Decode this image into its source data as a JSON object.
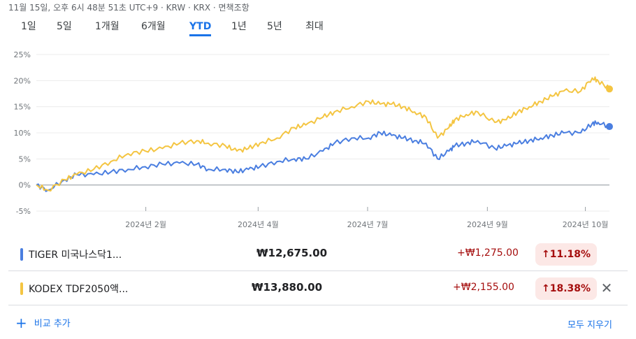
{
  "header": {
    "meta": "11월 15일, 오후 6시 48분 51초 UTC+9 · KRW · KRX · 면책조항"
  },
  "tabs": [
    {
      "label": "1일",
      "active": false
    },
    {
      "label": "5일",
      "active": false
    },
    {
      "label": "1개월",
      "active": false
    },
    {
      "label": "6개월",
      "active": false
    },
    {
      "label": "YTD",
      "active": true
    },
    {
      "label": "1년",
      "active": false
    },
    {
      "label": "5년",
      "active": false
    },
    {
      "label": "최대",
      "active": false
    }
  ],
  "chart_data": {
    "type": "line",
    "ylim": [
      -5,
      25
    ],
    "y_ticks": [
      "25%",
      "20%",
      "15%",
      "10%",
      "5%",
      "0%",
      "-5%"
    ],
    "y_tick_values": [
      25,
      20,
      15,
      10,
      5,
      0,
      -5
    ],
    "x_ticks": [
      "2024년 2월",
      "2024년 4월",
      "2024년 7월",
      "2024년 9월",
      "2024년 10월"
    ],
    "x_tick_positions": [
      0.191,
      0.387,
      0.578,
      0.787,
      0.958
    ],
    "grid": true,
    "series": [
      {
        "color": "#4a7ee0",
        "x": [
          0,
          0.02,
          0.05,
          0.07,
          0.1,
          0.13,
          0.16,
          0.19,
          0.22,
          0.25,
          0.28,
          0.3,
          0.33,
          0.35,
          0.37,
          0.39,
          0.42,
          0.45,
          0.47,
          0.5,
          0.52,
          0.55,
          0.58,
          0.6,
          0.62,
          0.64,
          0.66,
          0.68,
          0.7,
          0.72,
          0.73,
          0.75,
          0.77,
          0.8,
          0.82,
          0.84,
          0.86,
          0.88,
          0.9,
          0.92,
          0.95,
          0.97,
          0.98,
          1.0
        ],
        "y": [
          0,
          -1,
          1,
          2,
          2,
          2.5,
          3,
          3.5,
          4,
          4.2,
          4,
          3,
          3,
          2.5,
          3,
          3.5,
          4.5,
          5,
          5,
          6.5,
          8,
          9,
          9,
          10,
          9.5,
          9,
          8.5,
          8,
          5,
          6.5,
          7.5,
          8,
          8.5,
          7,
          7.5,
          8,
          8.5,
          9,
          9.5,
          10,
          10,
          11.8,
          12,
          11.2
        ]
      },
      {
        "color": "#f4c542",
        "x": [
          0,
          0.02,
          0.05,
          0.07,
          0.1,
          0.13,
          0.16,
          0.19,
          0.22,
          0.25,
          0.28,
          0.3,
          0.33,
          0.35,
          0.37,
          0.39,
          0.42,
          0.45,
          0.47,
          0.5,
          0.52,
          0.55,
          0.58,
          0.6,
          0.62,
          0.64,
          0.66,
          0.68,
          0.7,
          0.72,
          0.73,
          0.75,
          0.77,
          0.8,
          0.82,
          0.84,
          0.86,
          0.88,
          0.9,
          0.92,
          0.95,
          0.97,
          0.98,
          1.0
        ],
        "y": [
          0,
          -1,
          1,
          2,
          3,
          4.5,
          6,
          6.5,
          7,
          8,
          8.5,
          8,
          7.5,
          6.5,
          7,
          8,
          9,
          11,
          11.5,
          13,
          14,
          15,
          16,
          15.5,
          15.5,
          15,
          14,
          13,
          9,
          11,
          12.5,
          13.5,
          14,
          12,
          12.5,
          14,
          15,
          16,
          17,
          18,
          18,
          20.5,
          20,
          18.4
        ]
      }
    ]
  },
  "holdings": [
    {
      "color": "#4a7ee0",
      "name": "TIGER 미국나스닥1...",
      "price": "₩12,675.00",
      "change": "+₩1,275.00",
      "percent": "↑11.18%"
    },
    {
      "color": "#f4c542",
      "name": "KODEX TDF2050액...",
      "price": "₩13,880.00",
      "change": "+₩2,155.00",
      "percent": "↑18.38%"
    }
  ],
  "close_icon": "close-icon",
  "footer": {
    "add_compare_label": "비교 추가",
    "add_icon": "plus-icon",
    "clear_all_label": "모두 지우기"
  }
}
